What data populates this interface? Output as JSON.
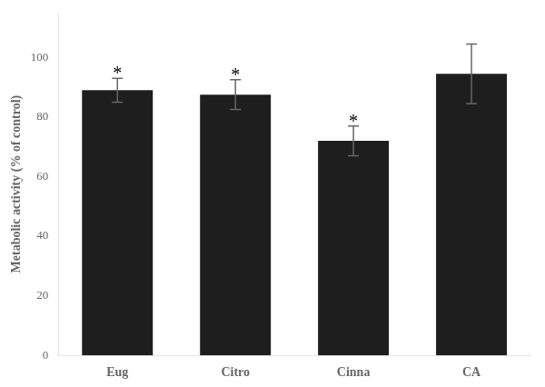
{
  "chart_data": {
    "type": "bar",
    "categories": [
      "Eug",
      "Citro",
      "Cinna",
      "CA"
    ],
    "values": [
      89.0,
      87.5,
      72.0,
      94.5
    ],
    "errors": [
      4.0,
      5.0,
      5.0,
      10.0
    ],
    "color": "#1e1e1e",
    "ylabel": "Metabolic activity (% of control)",
    "ylim": [
      0,
      115
    ],
    "yticks": [
      0,
      20,
      40,
      60,
      80,
      100
    ],
    "grid": false,
    "annotations": [
      {
        "text": "*",
        "x": "Eug"
      },
      {
        "text": "*",
        "x": "Citro"
      },
      {
        "text": "*",
        "x": "Cinna"
      }
    ]
  }
}
